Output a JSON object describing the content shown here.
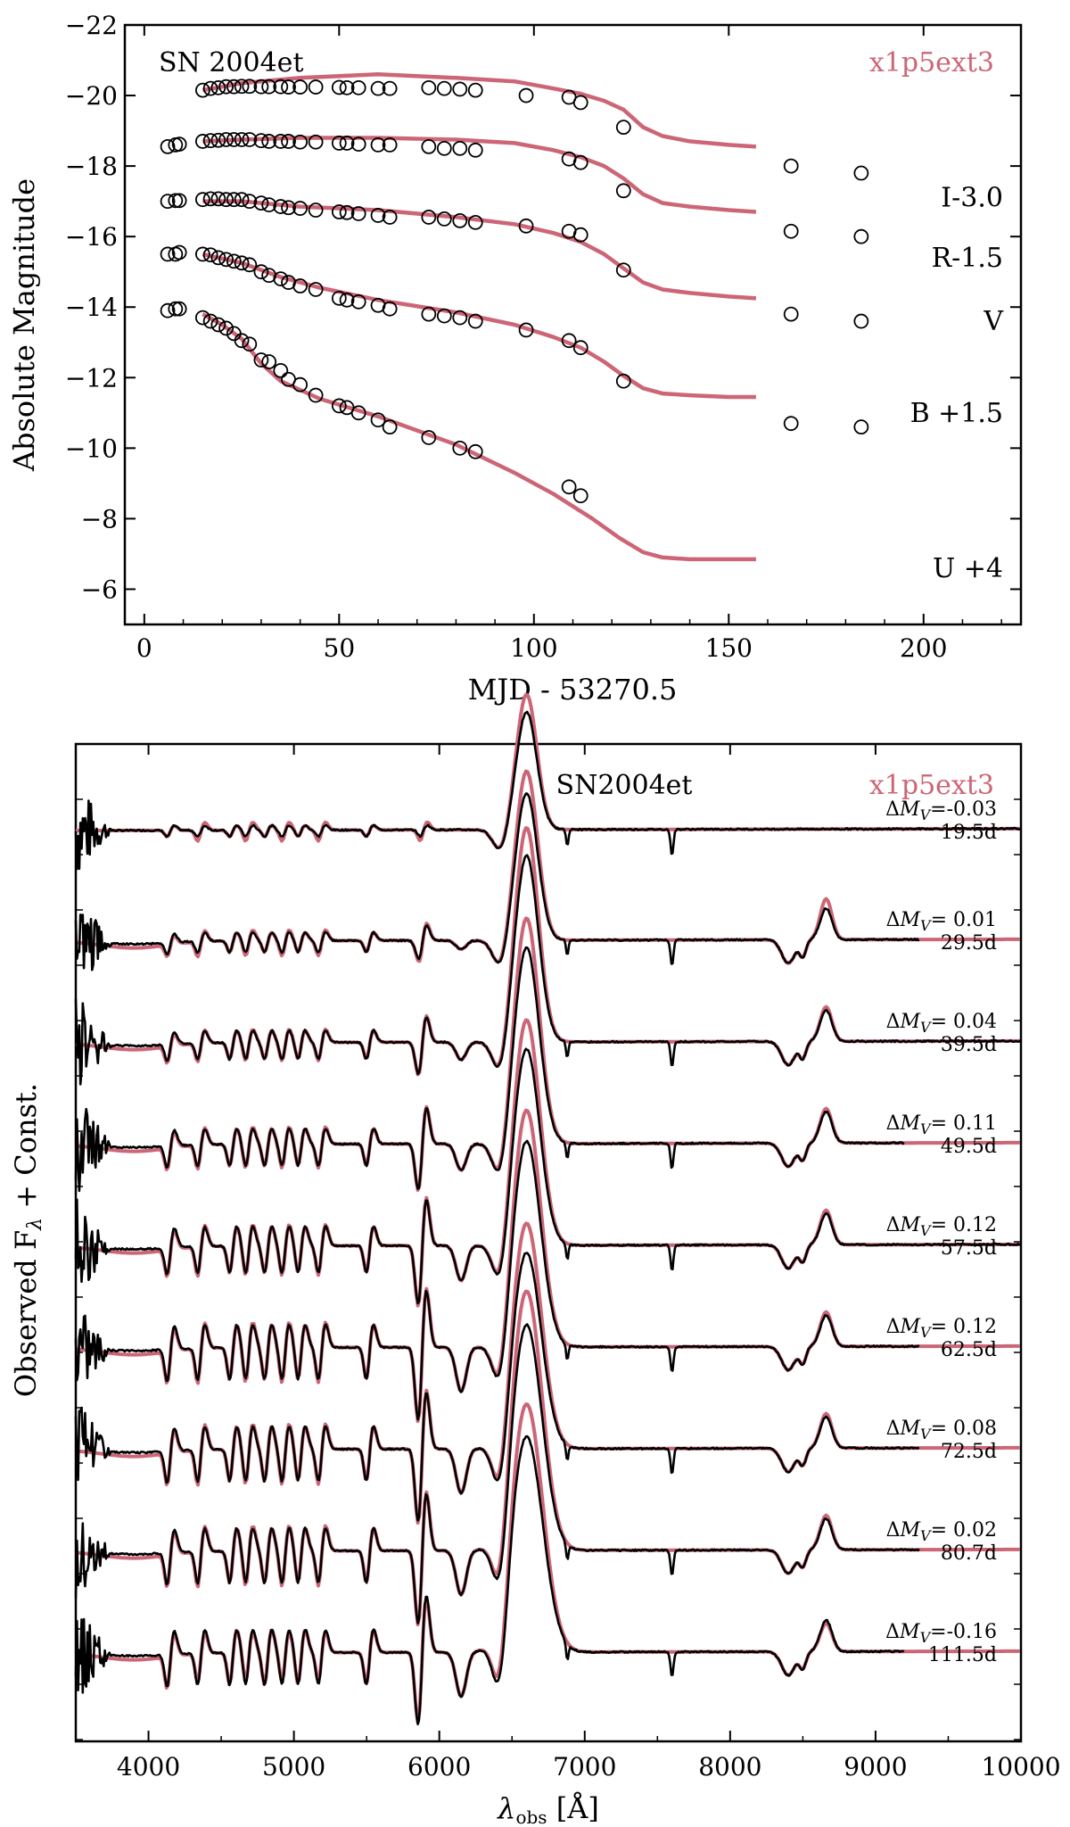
{
  "colors": {
    "model": "#cc6677",
    "observed": "#000000",
    "axis": "#000000"
  },
  "chart_data": [
    {
      "type": "scatter",
      "title": "SN 2004et",
      "model_label": "x1p5ext3",
      "xlabel": "MJD - 53270.5",
      "ylabel": "Absolute Magnitude",
      "xlim": [
        -5,
        225
      ],
      "ylim": [
        -22,
        -5
      ],
      "y_inverted": true,
      "xticks": [
        0,
        50,
        100,
        150,
        200
      ],
      "xtick_labels": [
        "0",
        "50",
        "100",
        "150",
        "200"
      ],
      "yticks": [
        -22,
        -20,
        -18,
        -16,
        -14,
        -12,
        -10,
        -8,
        -6
      ],
      "ytick_labels": [
        "−22",
        "−20",
        "−18",
        "−16",
        "−14",
        "−12",
        "−10",
        "−8",
        "−6"
      ],
      "series": [
        {
          "name": "I-3.0",
          "label_y": -17.1,
          "obs_x": [
            15,
            17,
            19,
            21,
            23,
            25,
            27,
            30,
            32,
            35,
            37,
            40,
            44,
            50,
            52,
            55,
            60,
            63,
            73,
            77,
            81,
            85,
            98,
            109,
            112
          ],
          "obs_y": [
            -20.15,
            -20.2,
            -20.22,
            -20.25,
            -20.25,
            -20.26,
            -20.26,
            -20.25,
            -20.25,
            -20.25,
            -20.24,
            -20.24,
            -20.24,
            -20.23,
            -20.22,
            -20.22,
            -20.2,
            -20.2,
            -20.22,
            -20.2,
            -20.18,
            -20.15,
            -20.0,
            -19.95,
            -19.8
          ],
          "obs_x2": [
            123,
            166,
            184
          ],
          "obs_y2": [
            -19.1,
            -18.0,
            -17.8
          ],
          "model_x": [
            15,
            25,
            40,
            60,
            80,
            95,
            105,
            112,
            118,
            123,
            128,
            133,
            140,
            150,
            157
          ],
          "model_y": [
            -20.15,
            -20.35,
            -20.5,
            -20.6,
            -20.5,
            -20.4,
            -20.2,
            -20.05,
            -19.85,
            -19.6,
            -19.1,
            -18.85,
            -18.7,
            -18.6,
            -18.55
          ]
        },
        {
          "name": "R-1.5",
          "label_y": -15.4,
          "obs_x": [
            6,
            8,
            9,
            15,
            17,
            19,
            21,
            23,
            25,
            27,
            30,
            32,
            35,
            37,
            40,
            44,
            50,
            52,
            55,
            60,
            63,
            73,
            77,
            81,
            85,
            109,
            112
          ],
          "obs_y": [
            -18.55,
            -18.6,
            -18.62,
            -18.7,
            -18.72,
            -18.73,
            -18.75,
            -18.75,
            -18.75,
            -18.75,
            -18.72,
            -18.7,
            -18.7,
            -18.7,
            -18.68,
            -18.68,
            -18.65,
            -18.65,
            -18.62,
            -18.6,
            -18.6,
            -18.55,
            -18.5,
            -18.5,
            -18.45,
            -18.2,
            -18.1
          ],
          "obs_x2": [
            123,
            166,
            184
          ],
          "obs_y2": [
            -17.3,
            -16.15,
            -16.0
          ],
          "model_x": [
            15,
            25,
            40,
            60,
            80,
            95,
            105,
            112,
            118,
            123,
            128,
            133,
            140,
            150,
            157
          ],
          "model_y": [
            -18.7,
            -18.75,
            -18.8,
            -18.8,
            -18.75,
            -18.65,
            -18.45,
            -18.25,
            -18.0,
            -17.65,
            -17.2,
            -16.95,
            -16.85,
            -16.75,
            -16.7
          ]
        },
        {
          "name": "V",
          "label_y": -13.6,
          "obs_x": [
            6,
            8,
            9,
            15,
            17,
            19,
            21,
            23,
            25,
            27,
            30,
            32,
            35,
            37,
            40,
            44,
            50,
            52,
            55,
            60,
            63,
            73,
            77,
            81,
            85,
            98,
            109,
            112
          ],
          "obs_y": [
            -17.0,
            -17.02,
            -17.02,
            -17.05,
            -17.07,
            -17.07,
            -17.05,
            -17.05,
            -17.05,
            -17.0,
            -16.95,
            -16.9,
            -16.85,
            -16.82,
            -16.8,
            -16.75,
            -16.7,
            -16.68,
            -16.65,
            -16.6,
            -16.55,
            -16.55,
            -16.5,
            -16.45,
            -16.4,
            -16.3,
            -16.15,
            -16.05
          ],
          "obs_x2": [
            123,
            166,
            184
          ],
          "obs_y2": [
            -15.05,
            -13.8,
            -13.6
          ],
          "model_x": [
            15,
            25,
            40,
            60,
            80,
            95,
            105,
            112,
            118,
            123,
            128,
            133,
            140,
            150,
            157
          ],
          "model_y": [
            -17.0,
            -17.0,
            -16.85,
            -16.75,
            -16.55,
            -16.35,
            -16.1,
            -15.85,
            -15.5,
            -15.1,
            -14.7,
            -14.5,
            -14.4,
            -14.3,
            -14.25
          ]
        },
        {
          "name": "B +1.5",
          "label_y": -11.0,
          "obs_x": [
            6,
            8,
            9,
            15,
            17,
            19,
            21,
            23,
            25,
            27,
            30,
            32,
            35,
            37,
            40,
            44,
            50,
            52,
            55,
            60,
            63,
            73,
            77,
            81,
            85,
            98,
            109,
            112
          ],
          "obs_y": [
            -15.5,
            -15.5,
            -15.55,
            -15.5,
            -15.48,
            -15.4,
            -15.35,
            -15.3,
            -15.25,
            -15.2,
            -15.0,
            -14.9,
            -14.8,
            -14.7,
            -14.6,
            -14.5,
            -14.25,
            -14.2,
            -14.15,
            -14.05,
            -13.95,
            -13.8,
            -13.75,
            -13.7,
            -13.6,
            -13.35,
            -13.05,
            -12.85
          ],
          "obs_x2": [
            123,
            166,
            184
          ],
          "obs_y2": [
            -11.9,
            -10.7,
            -10.6
          ],
          "model_x": [
            15,
            25,
            35,
            45,
            60,
            80,
            95,
            105,
            112,
            118,
            123,
            128,
            133,
            140,
            150,
            157
          ],
          "model_y": [
            -15.5,
            -15.25,
            -14.85,
            -14.55,
            -14.2,
            -13.85,
            -13.5,
            -13.15,
            -12.85,
            -12.45,
            -12.05,
            -11.7,
            -11.55,
            -11.5,
            -11.45,
            -11.45
          ]
        },
        {
          "name": "U +4",
          "label_y": -6.6,
          "obs_x": [
            6,
            8,
            9,
            15,
            17,
            19,
            21,
            23,
            25,
            27,
            30,
            32,
            35,
            37,
            40,
            44,
            50,
            52,
            55,
            60,
            63,
            73,
            81,
            85,
            109,
            112
          ],
          "obs_y": [
            -13.9,
            -13.95,
            -13.95,
            -13.7,
            -13.6,
            -13.5,
            -13.4,
            -13.25,
            -13.05,
            -12.95,
            -12.5,
            -12.45,
            -12.2,
            -11.95,
            -11.8,
            -11.5,
            -11.2,
            -11.15,
            -11.0,
            -10.8,
            -10.6,
            -10.3,
            -10.0,
            -9.9,
            -8.9,
            -8.65
          ],
          "model_x": [
            15,
            20,
            25,
            30,
            35,
            45,
            60,
            80,
            95,
            105,
            115,
            122,
            128,
            133,
            140,
            150,
            157
          ],
          "model_y": [
            -13.8,
            -13.5,
            -13.1,
            -12.4,
            -11.9,
            -11.4,
            -10.9,
            -10.1,
            -9.3,
            -8.7,
            -8.0,
            -7.45,
            -7.05,
            -6.9,
            -6.85,
            -6.85,
            -6.85
          ]
        }
      ]
    },
    {
      "type": "line",
      "title": "SN2004et",
      "model_label": "x1p5ext3",
      "xlabel_sym": "λ",
      "xlabel_sub": "obs",
      "xlabel_unit": " [Å]",
      "ylabel_pre": "Observed F",
      "ylabel_sub": "λ",
      "ylabel_post": " + Const.",
      "xlim": [
        3500,
        10000
      ],
      "xticks": [
        4000,
        5000,
        6000,
        7000,
        8000,
        9000,
        10000
      ],
      "xtick_labels": [
        "4000",
        "5000",
        "6000",
        "7000",
        "8000",
        "9000",
        "10000"
      ],
      "spectra": [
        {
          "dmv_prefix": "ΔM",
          "dmv_sub": "V",
          "dmv": "=-0.03",
          "epoch": "19.5d",
          "obs_end": 10000,
          "emission": 1.2,
          "model_excess": 1.7
        },
        {
          "dmv_prefix": "ΔM",
          "dmv_sub": "V",
          "dmv": "= 0.01",
          "epoch": "29.5d",
          "obs_end": 9300,
          "emission": 1.5,
          "model_excess": 1.3
        },
        {
          "dmv_prefix": "ΔM",
          "dmv_sub": "V",
          "dmv": "= 0.04",
          "epoch": "39.5d",
          "obs_end": 10000,
          "emission": 1.9,
          "model_excess": 1.1
        },
        {
          "dmv_prefix": "ΔM",
          "dmv_sub": "V",
          "dmv": "= 0.11",
          "epoch": "49.5d",
          "obs_end": 9200,
          "emission": 2.0,
          "model_excess": 1.1
        },
        {
          "dmv_prefix": "ΔM",
          "dmv_sub": "V",
          "dmv": "= 0.12",
          "epoch": "57.5d",
          "obs_end": 10000,
          "emission": 2.0,
          "model_excess": 1.1
        },
        {
          "dmv_prefix": "ΔM",
          "dmv_sub": "V",
          "dmv": "= 0.12",
          "epoch": "62.5d",
          "obs_end": 9300,
          "emission": 2.1,
          "model_excess": 1.1
        },
        {
          "dmv_prefix": "ΔM",
          "dmv_sub": "V",
          "dmv": "= 0.08",
          "epoch": "72.5d",
          "obs_end": 9300,
          "emission": 2.0,
          "model_excess": 1.1
        },
        {
          "dmv_prefix": "ΔM",
          "dmv_sub": "V",
          "dmv": "= 0.02",
          "epoch": "80.7d",
          "obs_end": 9300,
          "emission": 2.3,
          "model_excess": 1.1
        },
        {
          "dmv_prefix": "ΔM",
          "dmv_sub": "V",
          "dmv": "=-0.16",
          "epoch": "111.5d",
          "obs_end": 9200,
          "emission": 2.2,
          "model_excess": 0.9
        }
      ]
    }
  ]
}
